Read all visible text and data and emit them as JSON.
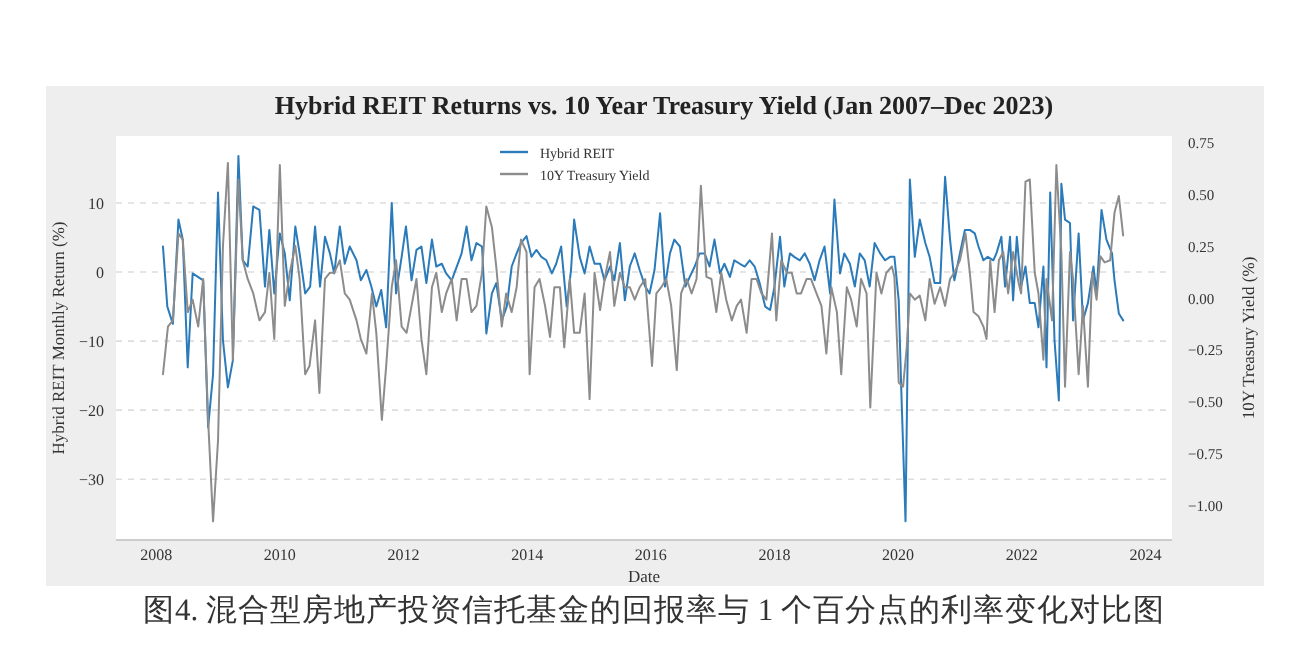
{
  "chart_data": {
    "type": "line",
    "title": "Hybrid REIT Returns vs. 10 Year Treasury Yield (Jan 2007–Dec 2023)",
    "xlabel": "Date",
    "ylabel": "Hybrid REIT Monthly Return (%)",
    "y2label": "10Y Treasury Yield (%)",
    "annotations": [
      "图4. 混合型房地产投资信托基金的回报率与 1 个百分点的利率变化对比图"
    ],
    "xlim": [
      2007.35,
      2024.43
    ],
    "xticks": [
      2008,
      2010,
      2012,
      2014,
      2016,
      2018,
      2020,
      2022,
      2024
    ],
    "ylim": [
      -38.8,
      19.7
    ],
    "yticks": [
      {
        "value": -30,
        "label": "−30"
      },
      {
        "value": -20,
        "label": "−20"
      },
      {
        "value": -10,
        "label": "−10"
      },
      0,
      10
    ],
    "y2lim": [
      -1.17,
      0.78
    ],
    "y2ticks": [
      {
        "value": -1,
        "label": "−1.00"
      },
      {
        "value": -0.75,
        "label": "−0.75"
      },
      {
        "value": -0.5,
        "label": "−0.50"
      },
      {
        "value": -0.25,
        "label": "−0.25"
      },
      {
        "value": 0,
        "label": "0.00"
      },
      {
        "value": 0.25,
        "label": "0.25"
      },
      {
        "value": 0.5,
        "label": "0.50"
      },
      {
        "value": 0.75,
        "label": "0.75"
      }
    ],
    "grid": "y",
    "legend": "top",
    "line_style": "solid",
    "marker": "none",
    "series": [
      {
        "name": "Hybrid REIT",
        "color": "#2b7bba",
        "x": [
          2008.11,
          2008.18,
          2008.27,
          2008.36,
          2008.43,
          2008.51,
          2008.59,
          2008.76,
          2008.84,
          2008.92,
          2009.0,
          2009.08,
          2009.16,
          2009.24,
          2009.33,
          2009.4,
          2009.48,
          2009.57,
          2009.67,
          2009.76,
          2009.83,
          2009.91,
          2010.0,
          2010.08,
          2010.16,
          2010.25,
          2010.32,
          2010.41,
          2010.49,
          2010.57,
          2010.65,
          2010.73,
          2010.81,
          2010.88,
          2010.97,
          2011.05,
          2011.13,
          2011.24,
          2011.31,
          2011.4,
          2011.48,
          2011.56,
          2011.64,
          2011.72,
          2011.81,
          2011.88,
          2011.97,
          2012.04,
          2012.13,
          2012.21,
          2012.29,
          2012.37,
          2012.46,
          2012.53,
          2012.62,
          2012.69,
          2012.78,
          2012.94,
          2013.02,
          2013.1,
          2013.18,
          2013.27,
          2013.34,
          2013.43,
          2013.5,
          2013.59,
          2013.67,
          2013.75,
          2013.83,
          2013.9,
          2013.99,
          2014.07,
          2014.15,
          2014.23,
          2014.31,
          2014.4,
          2014.47,
          2014.55,
          2014.64,
          2014.71,
          2014.76,
          2014.85,
          2014.93,
          2015.01,
          2015.09,
          2015.18,
          2015.25,
          2015.34,
          2015.41,
          2015.5,
          2015.58,
          2015.66,
          2015.74,
          2015.82,
          2015.91,
          2015.98,
          2016.06,
          2016.15,
          2016.23,
          2016.31,
          2016.38,
          2016.47,
          2016.56,
          2016.63,
          2016.71,
          2016.79,
          2016.87,
          2016.95,
          2017.03,
          2017.12,
          2017.19,
          2017.28,
          2017.35,
          2017.44,
          2017.52,
          2017.6,
          2017.68,
          2017.76,
          2017.85,
          2017.93,
          2018.0,
          2018.09,
          2018.16,
          2018.25,
          2018.32,
          2018.41,
          2018.49,
          2018.57,
          2018.65,
          2018.73,
          2018.81,
          2018.9,
          2018.97,
          2019.06,
          2019.13,
          2019.22,
          2019.3,
          2019.38,
          2019.46,
          2019.54,
          2019.62,
          2019.71,
          2019.79,
          2019.87,
          2019.94,
          2020.01,
          2020.05,
          2020.12,
          2020.19,
          2020.27,
          2020.35,
          2020.44,
          2020.51,
          2020.59,
          2020.68,
          2020.76,
          2020.84,
          2020.91,
          2021.0,
          2021.08,
          2021.16,
          2021.24,
          2021.3,
          2021.38,
          2021.45,
          2021.54,
          2021.59,
          2021.67,
          2021.73,
          2021.81,
          2021.86,
          2021.92,
          2021.99,
          2022.06,
          2022.13,
          2022.21,
          2022.27,
          2022.35,
          2022.4,
          2022.46,
          2022.53,
          2022.6,
          2022.64,
          2022.7,
          2022.78,
          2022.83,
          2022.92,
          2022.99,
          2023.07,
          2023.16,
          2023.21,
          2023.29,
          2023.37,
          2023.46,
          2023.5,
          2023.57,
          2023.64
        ],
        "values": [
          3.7,
          -5.0,
          -7.5,
          7.6,
          4.7,
          -13.8,
          -0.2,
          -1.2,
          -22.5,
          -14.8,
          11.5,
          -9.9,
          -16.7,
          -12.8,
          16.8,
          1.7,
          0.8,
          9.5,
          9.0,
          -2.1,
          6.1,
          -3.1,
          5.6,
          2.7,
          -4.1,
          6.6,
          2.7,
          -3.1,
          -2.1,
          6.6,
          -2.1,
          5.1,
          2.7,
          -0.2,
          6.6,
          1.2,
          3.7,
          1.7,
          -1.2,
          0.3,
          -2.1,
          -5.0,
          -2.6,
          -8.0,
          10.0,
          -3.1,
          2.2,
          6.6,
          -1.2,
          3.2,
          3.7,
          -1.6,
          4.7,
          0.8,
          1.2,
          -0.2,
          -1.2,
          2.7,
          6.6,
          1.7,
          4.2,
          3.7,
          -8.9,
          -3.1,
          -1.6,
          -7.0,
          -5.0,
          0.8,
          2.7,
          4.2,
          5.2,
          2.2,
          3.2,
          2.2,
          1.7,
          -0.2,
          1.2,
          3.7,
          -5.0,
          0.3,
          7.6,
          2.2,
          -0.2,
          3.7,
          1.2,
          1.2,
          -1.2,
          0.8,
          -1.2,
          4.2,
          -4.1,
          0.8,
          2.7,
          0.3,
          -2.1,
          -3.1,
          0.3,
          8.5,
          -2.1,
          2.7,
          4.7,
          3.7,
          -2.1,
          -0.7,
          0.8,
          2.7,
          2.7,
          0.8,
          4.7,
          -0.2,
          1.2,
          -0.7,
          1.7,
          1.2,
          0.8,
          1.7,
          0.8,
          -1.6,
          -5.0,
          -5.5,
          -2.1,
          5.1,
          -2.1,
          2.7,
          2.2,
          1.7,
          2.7,
          1.2,
          -1.2,
          1.7,
          3.7,
          -3.1,
          10.5,
          -0.2,
          2.7,
          1.2,
          -2.1,
          2.7,
          1.7,
          -2.1,
          4.2,
          2.7,
          1.7,
          2.2,
          2.2,
          -4.1,
          -16.7,
          -36.1,
          13.4,
          2.2,
          7.6,
          4.2,
          2.2,
          -1.6,
          -1.6,
          13.8,
          4.7,
          -1.2,
          2.7,
          6.1,
          6.1,
          5.6,
          3.7,
          1.7,
          2.2,
          1.7,
          2.7,
          5.1,
          -2.1,
          5.1,
          -4.1,
          5.1,
          -2.1,
          0.8,
          -4.5,
          -4.5,
          -8.0,
          0.8,
          -13.8,
          11.5,
          -9.9,
          -18.6,
          12.8,
          7.6,
          7.1,
          -7.0,
          5.6,
          -7.0,
          -4.5,
          0.8,
          -3.1,
          9.0,
          4.7,
          2.7,
          -1.2,
          -6.0,
          -7.0
        ]
      },
      {
        "name": "10Y Treasury Yield",
        "color": "#8c8c8c",
        "axis": "y2",
        "x": [
          2008.11,
          2008.19,
          2008.27,
          2008.36,
          2008.43,
          2008.51,
          2008.59,
          2008.68,
          2008.76,
          2008.84,
          2008.92,
          2009.0,
          2009.08,
          2009.16,
          2009.24,
          2009.33,
          2009.4,
          2009.48,
          2009.57,
          2009.67,
          2009.76,
          2009.83,
          2009.91,
          2010.0,
          2010.08,
          2010.16,
          2010.25,
          2010.32,
          2010.41,
          2010.48,
          2010.57,
          2010.64,
          2010.73,
          2010.81,
          2010.88,
          2010.97,
          2011.05,
          2011.13,
          2011.24,
          2011.31,
          2011.4,
          2011.49,
          2011.56,
          2011.65,
          2011.72,
          2011.81,
          2011.88,
          2011.97,
          2012.05,
          2012.13,
          2012.21,
          2012.29,
          2012.37,
          2012.46,
          2012.53,
          2012.62,
          2012.69,
          2012.78,
          2012.86,
          2012.94,
          2013.02,
          2013.1,
          2013.18,
          2013.27,
          2013.34,
          2013.43,
          2013.5,
          2013.59,
          2013.66,
          2013.75,
          2013.83,
          2013.9,
          2013.99,
          2014.04,
          2014.12,
          2014.2,
          2014.29,
          2014.37,
          2014.44,
          2014.53,
          2014.6,
          2014.69,
          2014.76,
          2014.85,
          2014.93,
          2015.01,
          2015.09,
          2015.18,
          2015.26,
          2015.34,
          2015.41,
          2015.5,
          2015.58,
          2015.66,
          2015.74,
          2015.82,
          2015.91,
          2016.02,
          2016.09,
          2016.17,
          2016.25,
          2016.33,
          2016.42,
          2016.49,
          2016.58,
          2016.66,
          2016.74,
          2016.81,
          2016.9,
          2016.98,
          2017.06,
          2017.14,
          2017.22,
          2017.31,
          2017.39,
          2017.46,
          2017.55,
          2017.63,
          2017.71,
          2017.79,
          2017.87,
          2017.96,
          2018.03,
          2018.11,
          2018.2,
          2018.28,
          2018.36,
          2018.43,
          2018.52,
          2018.59,
          2018.68,
          2018.76,
          2018.84,
          2018.92,
          2019.01,
          2019.08,
          2019.17,
          2019.24,
          2019.33,
          2019.4,
          2019.49,
          2019.55,
          2019.65,
          2019.73,
          2019.81,
          2019.9,
          2019.94,
          2020.01,
          2020.08,
          2020.14,
          2020.19,
          2020.27,
          2020.35,
          2020.44,
          2020.51,
          2020.59,
          2020.68,
          2020.76,
          2020.84,
          2020.91,
          2021.0,
          2021.09,
          2021.16,
          2021.22,
          2021.3,
          2021.38,
          2021.43,
          2021.49,
          2021.56,
          2021.63,
          2021.7,
          2021.78,
          2021.86,
          2021.95,
          2021.99,
          2022.06,
          2022.13,
          2022.21,
          2022.27,
          2022.35,
          2022.4,
          2022.49,
          2022.56,
          2022.64,
          2022.7,
          2022.78,
          2022.83,
          2022.92,
          2022.99,
          2023.07,
          2023.14,
          2023.21,
          2023.27,
          2023.34,
          2023.43,
          2023.5,
          2023.57,
          2023.64
        ],
        "values": [
          -0.37,
          -0.14,
          -0.11,
          0.31,
          0.28,
          -0.07,
          -0.01,
          -0.14,
          0.09,
          -0.59,
          -1.08,
          -0.69,
          0.25,
          0.65,
          -0.3,
          0.57,
          0.18,
          0.09,
          0.02,
          -0.11,
          -0.07,
          0.12,
          -0.2,
          0.64,
          -0.04,
          0.12,
          0.25,
          0.09,
          -0.37,
          -0.33,
          -0.11,
          -0.46,
          0.09,
          0.12,
          0.12,
          0.18,
          0.02,
          -0.01,
          -0.11,
          -0.2,
          -0.27,
          0.02,
          -0.17,
          -0.59,
          -0.33,
          0.05,
          0.18,
          -0.14,
          -0.17,
          -0.04,
          0.09,
          -0.2,
          -0.37,
          0.05,
          0.12,
          -0.07,
          0.02,
          0.09,
          -0.11,
          0.09,
          0.09,
          -0.07,
          -0.04,
          0.12,
          0.44,
          0.34,
          0.15,
          -0.14,
          0.02,
          -0.07,
          0.05,
          0.28,
          0.22,
          -0.37,
          0.05,
          0.09,
          -0.04,
          -0.19,
          0.05,
          0.05,
          -0.24,
          0.09,
          -0.17,
          -0.17,
          0.02,
          -0.49,
          0.12,
          -0.06,
          0.1,
          0.22,
          -0.04,
          0.12,
          0.05,
          0.05,
          -0.01,
          0.05,
          0.09,
          -0.33,
          0.02,
          0.05,
          0.09,
          -0.04,
          -0.35,
          0.02,
          0.09,
          0.02,
          0.09,
          0.54,
          0.1,
          0.09,
          -0.07,
          0.12,
          -0.01,
          -0.11,
          -0.04,
          -0.01,
          -0.17,
          0.09,
          0.09,
          0.02,
          -0.01,
          0.31,
          -0.11,
          0.18,
          0.12,
          0.12,
          0.02,
          0.02,
          0.09,
          0.09,
          0.02,
          -0.04,
          -0.27,
          0.05,
          -0.07,
          -0.37,
          0.05,
          -0.01,
          -0.14,
          0.09,
          0.02,
          -0.53,
          0.12,
          0.02,
          0.12,
          0.15,
          0.1,
          -0.41,
          -0.43,
          -0.24,
          0.02,
          -0.01,
          0.01,
          -0.11,
          0.09,
          -0.03,
          0.05,
          -0.04,
          0.09,
          0.12,
          0.18,
          0.31,
          0.12,
          -0.07,
          -0.09,
          -0.14,
          -0.2,
          0.18,
          -0.07,
          0.18,
          0.22,
          0.02,
          0.22,
          0.07,
          0.02,
          0.56,
          0.57,
          0.12,
          0.02,
          -0.3,
          0.09,
          -0.11,
          0.64,
          0.22,
          -0.43,
          0.22,
          0.09,
          -0.37,
          -0.04,
          -0.43,
          0.12,
          -0.01,
          0.2,
          0.17,
          0.18,
          0.41,
          0.49,
          0.3
        ]
      }
    ]
  }
}
